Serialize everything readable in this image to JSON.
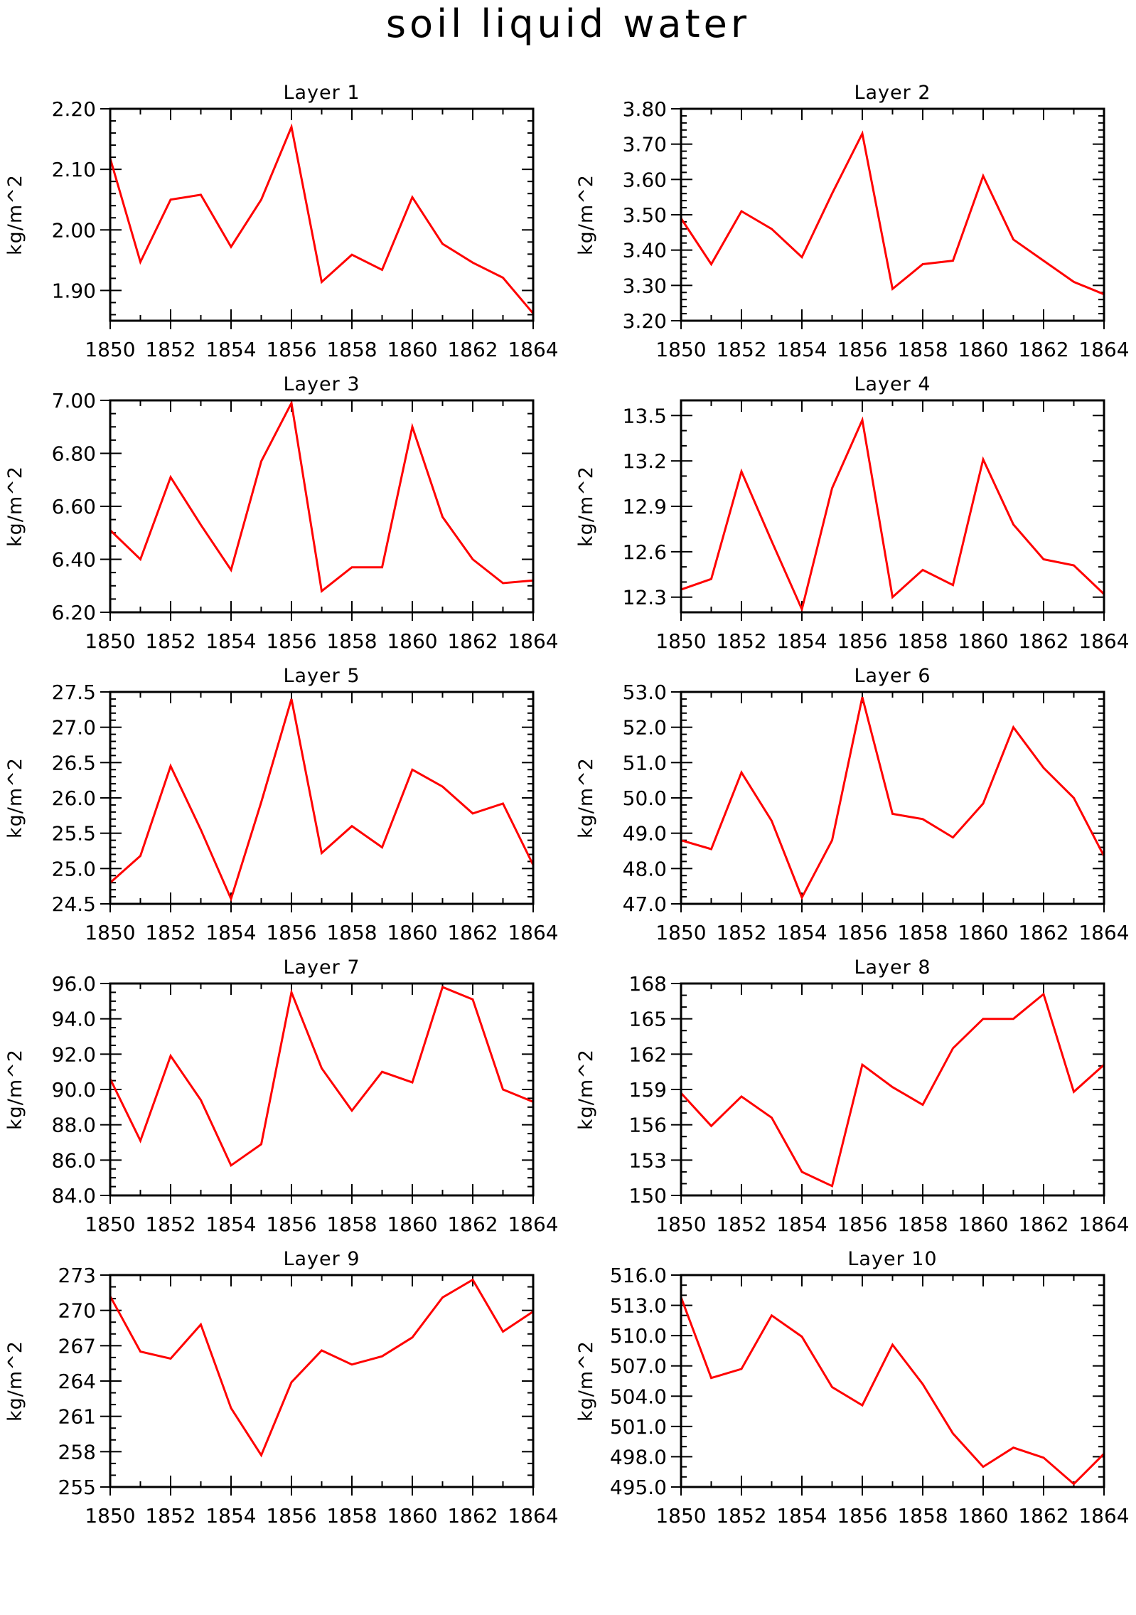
{
  "title": "soil liquid water",
  "chart_data": [
    {
      "type": "line",
      "title": "Layer 1",
      "ylabel": "kg/m^2",
      "x": [
        1850,
        1851,
        1852,
        1853,
        1854,
        1855,
        1856,
        1857,
        1858,
        1859,
        1860,
        1861,
        1862,
        1863,
        1864
      ],
      "y": [
        2.118,
        1.947,
        2.05,
        2.058,
        1.972,
        2.05,
        2.17,
        1.914,
        1.959,
        1.934,
        2.054,
        1.977,
        1.946,
        1.921,
        1.862
      ],
      "xlim": [
        1850,
        1864
      ],
      "ylim": [
        1.85,
        2.2
      ],
      "yticks": [
        1.9,
        2.0,
        2.1,
        2.2
      ],
      "ytick_labels": [
        "1.90",
        "2.00",
        "2.10",
        "2.20"
      ],
      "xticks": [
        1850,
        1852,
        1854,
        1856,
        1858,
        1860,
        1862,
        1864
      ],
      "xtick_labels": [
        "1850",
        "1852",
        "1854",
        "1856",
        "1858",
        "1860",
        "1862",
        "1864"
      ],
      "ymin_per_major": 5,
      "color": "#ff0000"
    },
    {
      "type": "line",
      "title": "Layer 2",
      "ylabel": "kg/m^2",
      "x": [
        1850,
        1851,
        1852,
        1853,
        1854,
        1855,
        1856,
        1857,
        1858,
        1859,
        1860,
        1861,
        1862,
        1863,
        1864
      ],
      "y": [
        3.49,
        3.36,
        3.51,
        3.46,
        3.38,
        3.56,
        3.73,
        3.29,
        3.36,
        3.37,
        3.61,
        3.43,
        3.37,
        3.31,
        3.275
      ],
      "xlim": [
        1850,
        1864
      ],
      "ylim": [
        3.2,
        3.8
      ],
      "yticks": [
        3.2,
        3.3,
        3.4,
        3.5,
        3.6,
        3.7,
        3.8
      ],
      "ytick_labels": [
        "3.20",
        "3.30",
        "3.40",
        "3.50",
        "3.60",
        "3.70",
        "3.80"
      ],
      "xticks": [
        1850,
        1852,
        1854,
        1856,
        1858,
        1860,
        1862,
        1864
      ],
      "xtick_labels": [
        "1850",
        "1852",
        "1854",
        "1856",
        "1858",
        "1860",
        "1862",
        "1864"
      ],
      "ymin_per_major": 5,
      "color": "#ff0000"
    },
    {
      "type": "line",
      "title": "Layer 3",
      "ylabel": "kg/m^2",
      "x": [
        1850,
        1851,
        1852,
        1853,
        1854,
        1855,
        1856,
        1857,
        1858,
        1859,
        1860,
        1861,
        1862,
        1863,
        1864
      ],
      "y": [
        6.51,
        6.4,
        6.71,
        6.53,
        6.36,
        6.77,
        6.99,
        6.28,
        6.37,
        6.37,
        6.9,
        6.56,
        6.4,
        6.31,
        6.32
      ],
      "xlim": [
        1850,
        1864
      ],
      "ylim": [
        6.2,
        7.0
      ],
      "yticks": [
        6.2,
        6.4,
        6.6,
        6.8,
        7.0
      ],
      "ytick_labels": [
        "6.20",
        "6.40",
        "6.60",
        "6.80",
        "7.00"
      ],
      "xticks": [
        1850,
        1852,
        1854,
        1856,
        1858,
        1860,
        1862,
        1864
      ],
      "xtick_labels": [
        "1850",
        "1852",
        "1854",
        "1856",
        "1858",
        "1860",
        "1862",
        "1864"
      ],
      "ymin_per_major": 4,
      "color": "#ff0000"
    },
    {
      "type": "line",
      "title": "Layer 4",
      "ylabel": "kg/m^2",
      "x": [
        1850,
        1851,
        1852,
        1853,
        1854,
        1855,
        1856,
        1857,
        1858,
        1859,
        1860,
        1861,
        1862,
        1863,
        1864
      ],
      "y": [
        12.35,
        12.42,
        13.13,
        12.67,
        12.22,
        13.02,
        13.47,
        12.3,
        12.48,
        12.38,
        13.21,
        12.78,
        12.55,
        12.51,
        12.32
      ],
      "xlim": [
        1850,
        1864
      ],
      "ylim": [
        12.2,
        13.6
      ],
      "yticks": [
        12.3,
        12.6,
        12.9,
        13.2,
        13.5
      ],
      "ytick_labels": [
        "12.3",
        "12.6",
        "12.9",
        "13.2",
        "13.5"
      ],
      "xticks": [
        1850,
        1852,
        1854,
        1856,
        1858,
        1860,
        1862,
        1864
      ],
      "xtick_labels": [
        "1850",
        "1852",
        "1854",
        "1856",
        "1858",
        "1860",
        "1862",
        "1864"
      ],
      "ymin_per_major": 3,
      "color": "#ff0000"
    },
    {
      "type": "line",
      "title": "Layer 5",
      "ylabel": "kg/m^2",
      "x": [
        1850,
        1851,
        1852,
        1853,
        1854,
        1855,
        1856,
        1857,
        1858,
        1859,
        1860,
        1861,
        1862,
        1863,
        1864
      ],
      "y": [
        24.8,
        25.18,
        26.45,
        25.55,
        24.57,
        25.94,
        27.4,
        25.22,
        25.6,
        25.3,
        26.4,
        26.16,
        25.78,
        25.92,
        25.05
      ],
      "xlim": [
        1850,
        1864
      ],
      "ylim": [
        24.5,
        27.5
      ],
      "yticks": [
        24.5,
        25.0,
        25.5,
        26.0,
        26.5,
        27.0,
        27.5
      ],
      "ytick_labels": [
        "24.5",
        "25.0",
        "25.5",
        "26.0",
        "26.5",
        "27.0",
        "27.5"
      ],
      "xticks": [
        1850,
        1852,
        1854,
        1856,
        1858,
        1860,
        1862,
        1864
      ],
      "xtick_labels": [
        "1850",
        "1852",
        "1854",
        "1856",
        "1858",
        "1860",
        "1862",
        "1864"
      ],
      "ymin_per_major": 5,
      "color": "#ff0000"
    },
    {
      "type": "line",
      "title": "Layer 6",
      "ylabel": "kg/m^2",
      "x": [
        1850,
        1851,
        1852,
        1853,
        1854,
        1855,
        1856,
        1857,
        1858,
        1859,
        1860,
        1861,
        1862,
        1863,
        1864
      ],
      "y": [
        48.8,
        48.55,
        50.72,
        49.35,
        47.18,
        48.8,
        52.85,
        49.55,
        49.4,
        48.88,
        49.84,
        52.0,
        50.85,
        50.0,
        48.35
      ],
      "xlim": [
        1850,
        1864
      ],
      "ylim": [
        47.0,
        53.0
      ],
      "yticks": [
        47.0,
        48.0,
        49.0,
        50.0,
        51.0,
        52.0,
        53.0
      ],
      "ytick_labels": [
        "47.0",
        "48.0",
        "49.0",
        "50.0",
        "51.0",
        "52.0",
        "53.0"
      ],
      "xticks": [
        1850,
        1852,
        1854,
        1856,
        1858,
        1860,
        1862,
        1864
      ],
      "xtick_labels": [
        "1850",
        "1852",
        "1854",
        "1856",
        "1858",
        "1860",
        "1862",
        "1864"
      ],
      "ymin_per_major": 5,
      "color": "#ff0000"
    },
    {
      "type": "line",
      "title": "Layer 7",
      "ylabel": "kg/m^2",
      "x": [
        1850,
        1851,
        1852,
        1853,
        1854,
        1855,
        1856,
        1857,
        1858,
        1859,
        1860,
        1861,
        1862,
        1863,
        1864
      ],
      "y": [
        90.6,
        87.1,
        91.9,
        89.4,
        85.7,
        86.9,
        95.5,
        91.2,
        88.8,
        91.0,
        90.4,
        95.8,
        95.1,
        90.0,
        89.3
      ],
      "xlim": [
        1850,
        1864
      ],
      "ylim": [
        84.0,
        96.0
      ],
      "yticks": [
        84.0,
        86.0,
        88.0,
        90.0,
        92.0,
        94.0,
        96.0
      ],
      "ytick_labels": [
        "84.0",
        "86.0",
        "88.0",
        "90.0",
        "92.0",
        "94.0",
        "96.0"
      ],
      "xticks": [
        1850,
        1852,
        1854,
        1856,
        1858,
        1860,
        1862,
        1864
      ],
      "xtick_labels": [
        "1850",
        "1852",
        "1854",
        "1856",
        "1858",
        "1860",
        "1862",
        "1864"
      ],
      "ymin_per_major": 4,
      "color": "#ff0000"
    },
    {
      "type": "line",
      "title": "Layer 8",
      "ylabel": "kg/m^2",
      "x": [
        1850,
        1851,
        1852,
        1853,
        1854,
        1855,
        1856,
        1857,
        1858,
        1859,
        1860,
        1861,
        1862,
        1863,
        1864
      ],
      "y": [
        158.7,
        155.9,
        158.4,
        156.6,
        152.0,
        150.8,
        161.1,
        159.2,
        157.7,
        162.5,
        165.0,
        165.0,
        167.1,
        158.8,
        161.1
      ],
      "xlim": [
        1850,
        1864
      ],
      "ylim": [
        150,
        168
      ],
      "yticks": [
        150,
        153,
        156,
        159,
        162,
        165,
        168
      ],
      "ytick_labels": [
        "150",
        "153",
        "156",
        "159",
        "162",
        "165",
        "168"
      ],
      "xticks": [
        1850,
        1852,
        1854,
        1856,
        1858,
        1860,
        1862,
        1864
      ],
      "xtick_labels": [
        "1850",
        "1852",
        "1854",
        "1856",
        "1858",
        "1860",
        "1862",
        "1864"
      ],
      "ymin_per_major": 3,
      "color": "#ff0000"
    },
    {
      "type": "line",
      "title": "Layer 9",
      "ylabel": "kg/m^2",
      "x": [
        1850,
        1851,
        1852,
        1853,
        1854,
        1855,
        1856,
        1857,
        1858,
        1859,
        1860,
        1861,
        1862,
        1863,
        1864
      ],
      "y": [
        271.2,
        266.5,
        265.9,
        268.8,
        261.7,
        257.7,
        263.9,
        266.6,
        265.4,
        266.1,
        267.7,
        271.1,
        272.6,
        268.2,
        269.9
      ],
      "xlim": [
        1850,
        1864
      ],
      "ylim": [
        255,
        273
      ],
      "yticks": [
        255,
        258,
        261,
        264,
        267,
        270,
        273
      ],
      "ytick_labels": [
        "255",
        "258",
        "261",
        "264",
        "267",
        "270",
        "273"
      ],
      "xticks": [
        1850,
        1852,
        1854,
        1856,
        1858,
        1860,
        1862,
        1864
      ],
      "xtick_labels": [
        "1850",
        "1852",
        "1854",
        "1856",
        "1858",
        "1860",
        "1862",
        "1864"
      ],
      "ymin_per_major": 3,
      "color": "#ff0000"
    },
    {
      "type": "line",
      "title": "Layer 10",
      "ylabel": "kg/m^2",
      "x": [
        1850,
        1851,
        1852,
        1853,
        1854,
        1855,
        1856,
        1857,
        1858,
        1859,
        1860,
        1861,
        1862,
        1863,
        1864
      ],
      "y": [
        513.8,
        505.8,
        506.7,
        512.0,
        509.9,
        504.9,
        503.1,
        509.1,
        505.2,
        500.3,
        497.0,
        498.9,
        497.9,
        495.3,
        498.3
      ],
      "xlim": [
        1850,
        1864
      ],
      "ylim": [
        495,
        516
      ],
      "yticks": [
        495,
        498,
        501,
        504,
        507,
        510,
        513,
        516
      ],
      "ytick_labels": [
        "495.0",
        "498.0",
        "501.0",
        "504.0",
        "507.0",
        "510.0",
        "513.0",
        "516.0"
      ],
      "xticks": [
        1850,
        1852,
        1854,
        1856,
        1858,
        1860,
        1862,
        1864
      ],
      "xtick_labels": [
        "1850",
        "1852",
        "1854",
        "1856",
        "1858",
        "1860",
        "1862",
        "1864"
      ],
      "ymin_per_major": 3,
      "color": "#ff0000"
    }
  ]
}
